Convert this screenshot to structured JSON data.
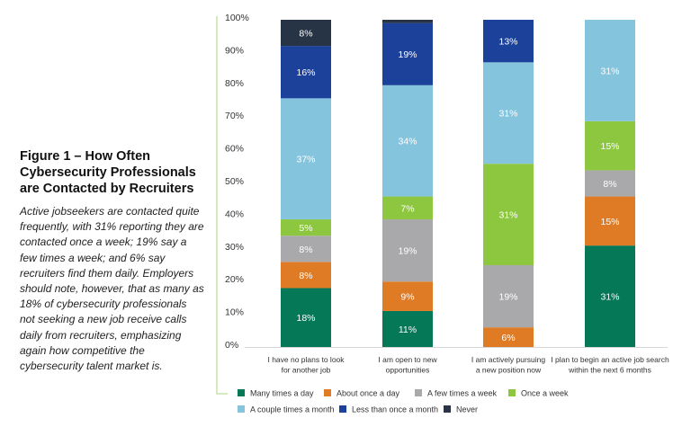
{
  "figure": {
    "title": "Figure 1 – How Often Cybersecurity Professionals are Contacted by Recruiters",
    "text": "Active jobseekers are contacted quite frequently, with 31% reporting they are contacted once a week; 19% say a few times a week; and 6% say recruiters find them daily. Employers should note, however, that as many as 18% of cybersecurity professionals not seeking a new job receive calls daily from recruiters, emphasizing again how competitive the cybersecurity talent market is."
  },
  "chart_data": {
    "type": "bar",
    "stacked": true,
    "ylim": [
      0,
      100
    ],
    "yticks": [
      "0%",
      "10%",
      "20%",
      "30%",
      "40%",
      "50%",
      "60%",
      "70%",
      "80%",
      "90%",
      "100%"
    ],
    "categories": [
      [
        "I have no plans to look",
        "for another job"
      ],
      [
        "I am open to new",
        "opportunities"
      ],
      [
        "I am actively pursuing",
        "a new position now"
      ],
      [
        "I plan to begin an active job search",
        "within the next 6 months"
      ]
    ],
    "series": [
      {
        "name": "Many times a day",
        "color": "#047857",
        "values": [
          18,
          11,
          0,
          31
        ],
        "labels": [
          "18%",
          "11%",
          "",
          "31%"
        ]
      },
      {
        "name": "About once a day",
        "color": "#e07b25",
        "values": [
          8,
          9,
          6,
          15
        ],
        "labels": [
          "8%",
          "9%",
          "6%",
          "15%"
        ]
      },
      {
        "name": "A few times a week",
        "color": "#a9a9ab",
        "values": [
          8,
          19,
          19,
          8
        ],
        "labels": [
          "8%",
          "19%",
          "19%",
          "8%"
        ]
      },
      {
        "name": "Once a week",
        "color": "#8dc63f",
        "values": [
          5,
          7,
          31,
          15
        ],
        "labels": [
          "5%",
          "7%",
          "31%",
          "15%"
        ]
      },
      {
        "name": "A couple times a month",
        "color": "#85c4dd",
        "values": [
          37,
          34,
          31,
          31
        ],
        "labels": [
          "37%",
          "34%",
          "31%",
          "31%"
        ]
      },
      {
        "name": "Less than once a month",
        "color": "#1b419b",
        "values": [
          16,
          19,
          13,
          0
        ],
        "labels": [
          "16%",
          "19%",
          "13%",
          ""
        ]
      },
      {
        "name": "Never",
        "color": "#263445",
        "values": [
          8,
          1,
          0,
          0
        ],
        "labels": [
          "8%",
          "",
          "",
          ""
        ]
      }
    ],
    "legend": "bottom",
    "grid": false,
    "axis_line_color": "#c5e3a5"
  }
}
